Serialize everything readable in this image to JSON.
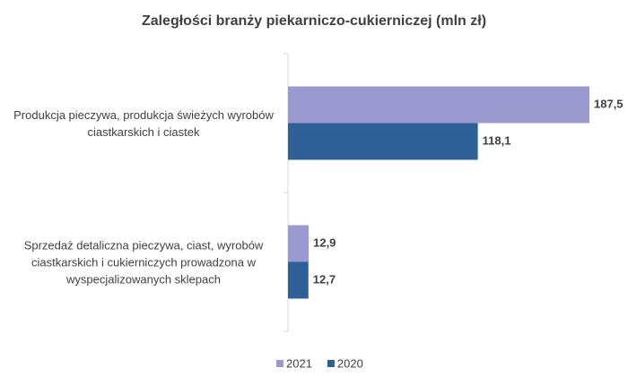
{
  "chart_data": {
    "type": "hbar",
    "title": "Zaległości branży piekarniczo-cukierniczej (mln zł)",
    "categories": [
      "Produkcja pieczywa, produkcja świeżych wyrobów ciastkarskich i ciastek",
      "Sprzedaż detaliczna pieczywa, ciast, wyrobów ciastkarskich i cukierniczych prowadzona w wyspecjalizowanych sklepach"
    ],
    "series": [
      {
        "name": "2021",
        "color": "#9b9ad0",
        "values": [
          187.5,
          12.9
        ],
        "value_labels": [
          "187,5",
          "12,9"
        ]
      },
      {
        "name": "2020",
        "color": "#2f6095",
        "values": [
          118.1,
          12.7
        ],
        "value_labels": [
          "118,1",
          "12,7"
        ]
      }
    ],
    "legend": "bottom"
  }
}
